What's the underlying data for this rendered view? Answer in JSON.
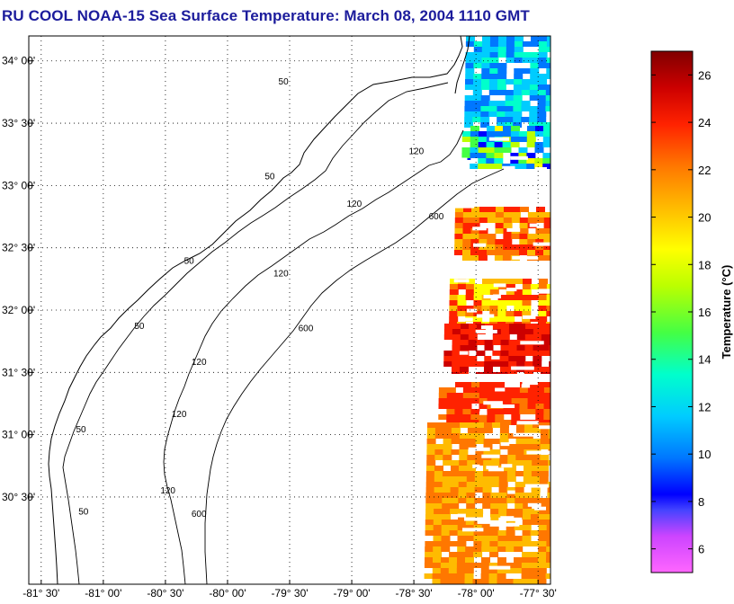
{
  "title": "RU COOL  NOAA-15  Sea Surface Temperature:  March 08, 2004 1110 GMT",
  "map": {
    "lon_range": [
      -81.6,
      -77.4
    ],
    "lat_range": [
      29.8,
      34.2
    ],
    "x_ticks": [
      {
        "value": -81.5,
        "label": "-81° 30'"
      },
      {
        "value": -81.0,
        "label": "-81° 00'"
      },
      {
        "value": -80.5,
        "label": "-80° 30'"
      },
      {
        "value": -80.0,
        "label": "-80° 00'"
      },
      {
        "value": -79.5,
        "label": "-79° 30'"
      },
      {
        "value": -79.0,
        "label": "-79° 00'"
      },
      {
        "value": -78.5,
        "label": "-78° 30'"
      },
      {
        "value": -78.0,
        "label": "-78° 00'"
      },
      {
        "value": -77.5,
        "label": "-77° 30'"
      }
    ],
    "y_ticks": [
      {
        "value": 34.0,
        "label": "34° 00'"
      },
      {
        "value": 33.5,
        "label": "33° 30'"
      },
      {
        "value": 33.0,
        "label": "33° 00'"
      },
      {
        "value": 32.5,
        "label": "32° 30'"
      },
      {
        "value": 32.0,
        "label": "32° 00'"
      },
      {
        "value": 31.5,
        "label": "31° 30'"
      },
      {
        "value": 31.0,
        "label": "31° 00'"
      },
      {
        "value": 30.5,
        "label": "30° 30'"
      }
    ],
    "grid": "dotted",
    "isobath_labels": [
      {
        "text": "50",
        "lon": -79.55,
        "lat": 33.81
      },
      {
        "text": "50",
        "lon": -79.66,
        "lat": 33.05
      },
      {
        "text": "50",
        "lon": -80.31,
        "lat": 32.37
      },
      {
        "text": "50",
        "lon": -80.71,
        "lat": 31.85
      },
      {
        "text": "50",
        "lon": -81.18,
        "lat": 31.02
      },
      {
        "text": "50",
        "lon": -81.16,
        "lat": 30.36
      },
      {
        "text": "120",
        "lon": -78.48,
        "lat": 33.25
      },
      {
        "text": "120",
        "lon": -78.98,
        "lat": 32.83
      },
      {
        "text": "120",
        "lon": -79.57,
        "lat": 32.27
      },
      {
        "text": "120",
        "lon": -80.23,
        "lat": 31.56
      },
      {
        "text": "120",
        "lon": -80.39,
        "lat": 31.14
      },
      {
        "text": "120",
        "lon": -80.48,
        "lat": 30.53
      },
      {
        "text": "600",
        "lon": -78.32,
        "lat": 32.73
      },
      {
        "text": "600",
        "lon": -79.37,
        "lat": 31.83
      },
      {
        "text": "600",
        "lon": -80.23,
        "lat": 30.34
      }
    ]
  },
  "colorbar": {
    "label": "Temperature (°C)",
    "range": [
      5,
      27
    ],
    "ticks": [
      6,
      8,
      10,
      12,
      14,
      16,
      18,
      20,
      22,
      24,
      26
    ]
  }
}
